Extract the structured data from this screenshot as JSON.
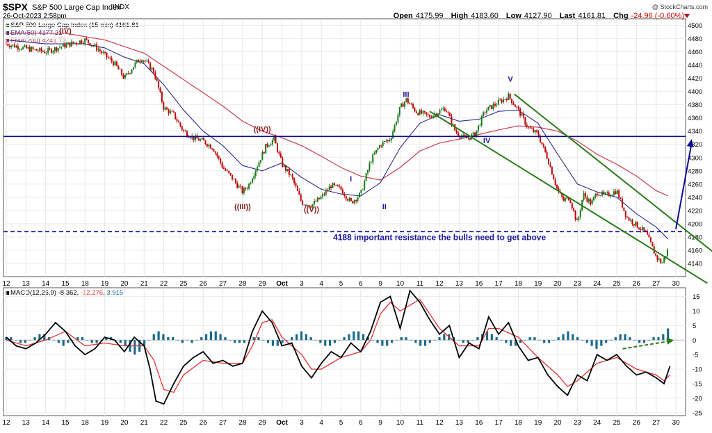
{
  "header": {
    "symbol": "$SPX",
    "name": "S&P 500 Large Cap Index",
    "exchange": "INDX",
    "date": "26-Oct-2023 2:58pm",
    "watermark": "@ StockCharts.com",
    "ohlc": {
      "open_label": "Open",
      "open": "4175.99",
      "high_label": "High",
      "high": "4183.60",
      "low_label": "Low",
      "low": "4127.90",
      "last_label": "Last",
      "last": "4161.81",
      "chg_label": "Chg",
      "chg": "-24.96 (-0.60%)"
    }
  },
  "legend": {
    "price": "S&P 500 Large Cap Index (15 min) 4161.81",
    "ema50": "EMA(50) 4177.21",
    "ema200": "EMA(200) 4241.73",
    "macd_label": "MACD(12,26,9)",
    "macd_value": "-8.362",
    "signal_value": "-12.276",
    "hist_value": "3.915"
  },
  "colors": {
    "up": "#1a7a1a",
    "down": "#c00000",
    "ema50": "#2a2a8a",
    "ema200": "#c83c50",
    "waves_blue": "#1a1aa0",
    "waves_brown": "#8a2020",
    "channel": "#2a7a1a",
    "resistance": "#0a0a9a",
    "macd": "#000000",
    "signal": "#e03030",
    "histogram": "#1a6a8a"
  },
  "chart_data": [
    {
      "type": "candlestick",
      "interval": "15 min",
      "ylim": [
        4120,
        4510
      ],
      "y_ticks": [
        4140,
        4160,
        4180,
        4200,
        4220,
        4240,
        4260,
        4280,
        4300,
        4320,
        4340,
        4360,
        4380,
        4400,
        4420,
        4440,
        4460,
        4480,
        4500
      ],
      "x_tick_labels": [
        "12",
        "13",
        "14",
        "15",
        "18",
        "19",
        "20",
        "21",
        "22",
        "25",
        "26",
        "27",
        "28",
        "29",
        "Oct",
        "3",
        "4",
        "5",
        "6",
        "9",
        "10",
        "11",
        "12",
        "13",
        "16",
        "17",
        "18",
        "19",
        "20",
        "23",
        "24",
        "25",
        "26",
        "27",
        "30"
      ],
      "close_path": [
        [
          0,
          4472
        ],
        [
          1,
          4465
        ],
        [
          2,
          4460
        ],
        [
          3,
          4470
        ],
        [
          4,
          4478
        ],
        [
          4.5,
          4468
        ],
        [
          5,
          4455
        ],
        [
          5.5,
          4442
        ],
        [
          6,
          4420
        ],
        [
          6.5,
          4440
        ],
        [
          6.8,
          4450
        ],
        [
          7,
          4448
        ],
        [
          7.5,
          4430
        ],
        [
          8,
          4375
        ],
        [
          8.5,
          4365
        ],
        [
          9,
          4340
        ],
        [
          9.5,
          4330
        ],
        [
          10,
          4325
        ],
        [
          10.5,
          4315
        ],
        [
          11,
          4285
        ],
        [
          11.5,
          4268
        ],
        [
          12,
          4248
        ],
        [
          12.3,
          4258
        ],
        [
          12.7,
          4285
        ],
        [
          13.2,
          4318
        ],
        [
          13.6,
          4328
        ],
        [
          14,
          4290
        ],
        [
          14.5,
          4270
        ],
        [
          15,
          4232
        ],
        [
          15.5,
          4228
        ],
        [
          16,
          4240
        ],
        [
          16.5,
          4258
        ],
        [
          17,
          4252
        ],
        [
          17.5,
          4232
        ],
        [
          18,
          4245
        ],
        [
          18.5,
          4295
        ],
        [
          19,
          4320
        ],
        [
          19.5,
          4328
        ],
        [
          20,
          4375
        ],
        [
          20.3,
          4388
        ],
        [
          20.8,
          4370
        ],
        [
          21.5,
          4362
        ],
        [
          22.3,
          4375
        ],
        [
          22.8,
          4340
        ],
        [
          23.3,
          4328
        ],
        [
          23.8,
          4335
        ],
        [
          24.3,
          4370
        ],
        [
          24.8,
          4380
        ],
        [
          25.5,
          4393
        ],
        [
          26,
          4372
        ],
        [
          26.5,
          4345
        ],
        [
          27,
          4335
        ],
        [
          27.5,
          4298
        ],
        [
          28,
          4250
        ],
        [
          28.3,
          4235
        ],
        [
          28.6,
          4240
        ],
        [
          29,
          4200
        ],
        [
          29.3,
          4245
        ],
        [
          29.7,
          4230
        ],
        [
          30,
          4248
        ],
        [
          30.4,
          4242
        ],
        [
          31,
          4250
        ],
        [
          31.5,
          4210
        ],
        [
          32,
          4198
        ],
        [
          32.5,
          4185
        ],
        [
          33,
          4150
        ],
        [
          33.3,
          4140
        ],
        [
          33.6,
          4161
        ]
      ],
      "ema50": [
        [
          0,
          4478
        ],
        [
          2,
          4472
        ],
        [
          4,
          4472
        ],
        [
          5,
          4466
        ],
        [
          6,
          4452
        ],
        [
          7,
          4442
        ],
        [
          8,
          4410
        ],
        [
          9,
          4372
        ],
        [
          10,
          4340
        ],
        [
          11,
          4318
        ],
        [
          12,
          4288
        ],
        [
          13,
          4280
        ],
        [
          14,
          4292
        ],
        [
          15,
          4270
        ],
        [
          16,
          4252
        ],
        [
          17,
          4245
        ],
        [
          18,
          4242
        ],
        [
          19,
          4262
        ],
        [
          20,
          4315
        ],
        [
          21,
          4352
        ],
        [
          22,
          4365
        ],
        [
          23,
          4355
        ],
        [
          24,
          4358
        ],
        [
          25,
          4370
        ],
        [
          26,
          4372
        ],
        [
          27,
          4352
        ],
        [
          28,
          4305
        ],
        [
          29,
          4260
        ],
        [
          30,
          4248
        ],
        [
          31,
          4240
        ],
        [
          32,
          4215
        ],
        [
          33,
          4195
        ],
        [
          33.6,
          4177
        ]
      ],
      "ema200": [
        [
          0,
          4488
        ],
        [
          3,
          4488
        ],
        [
          5,
          4478
        ],
        [
          7,
          4458
        ],
        [
          9,
          4418
        ],
        [
          11,
          4378
        ],
        [
          12,
          4355
        ],
        [
          13,
          4340
        ],
        [
          14,
          4330
        ],
        [
          15,
          4318
        ],
        [
          16,
          4302
        ],
        [
          17,
          4285
        ],
        [
          18,
          4272
        ],
        [
          19,
          4266
        ],
        [
          20,
          4285
        ],
        [
          21,
          4310
        ],
        [
          22,
          4322
        ],
        [
          23,
          4328
        ],
        [
          24,
          4335
        ],
        [
          25,
          4342
        ],
        [
          26,
          4348
        ],
        [
          27,
          4346
        ],
        [
          28,
          4340
        ],
        [
          29,
          4325
        ],
        [
          30,
          4305
        ],
        [
          31,
          4290
        ],
        [
          32,
          4272
        ],
        [
          33,
          4250
        ],
        [
          33.6,
          4242
        ]
      ],
      "horizontal_levels": [
        {
          "value": 4332,
          "style": "solid"
        },
        {
          "value": 4188,
          "style": "dashed"
        }
      ],
      "annotations": [
        {
          "text": "(IV)",
          "x": 3,
          "y": 4488,
          "color": "brown"
        },
        {
          "text": "((IV))",
          "x": 13,
          "y": 4339,
          "color": "brown"
        },
        {
          "text": "((III))",
          "x": 12,
          "y": 4222,
          "color": "brown"
        },
        {
          "text": "((V))",
          "x": 15.5,
          "y": 4218,
          "color": "brown"
        },
        {
          "text": "I",
          "x": 17.5,
          "y": 4264,
          "color": "blue"
        },
        {
          "text": "II",
          "x": 19.2,
          "y": 4222,
          "color": "blue"
        },
        {
          "text": "III",
          "x": 20.3,
          "y": 4392,
          "color": "blue"
        },
        {
          "text": "IV",
          "x": 24.4,
          "y": 4322,
          "color": "blue"
        },
        {
          "text": "V",
          "x": 25.6,
          "y": 4415,
          "color": "blue"
        },
        {
          "text": "4188 important resistance the bulls need to get above",
          "x": 22,
          "y": 4175,
          "color": "blue"
        }
      ],
      "channel_lines": [
        {
          "from": [
            21.5,
            4370
          ],
          "to": [
            35.6,
            4110
          ]
        },
        {
          "from": [
            25.8,
            4396
          ],
          "to": [
            36.2,
            4150
          ]
        }
      ],
      "arrow": {
        "from": [
          34,
          4192
        ],
        "to": [
          34.8,
          4328
        ]
      }
    },
    {
      "type": "line",
      "name": "MACD(12,26,9)",
      "ylim": [
        -26,
        18
      ],
      "y_ticks": [
        15,
        10,
        5,
        0,
        -5,
        -10,
        -15,
        -20,
        -25
      ],
      "macd_line": [
        [
          0,
          1
        ],
        [
          0.5,
          -2
        ],
        [
          1,
          -3
        ],
        [
          1.5,
          -1
        ],
        [
          2,
          2
        ],
        [
          2.5,
          6
        ],
        [
          3,
          3
        ],
        [
          3.5,
          -2
        ],
        [
          4,
          -5
        ],
        [
          4.5,
          -3
        ],
        [
          5,
          1
        ],
        [
          5.5,
          0
        ],
        [
          6,
          -4
        ],
        [
          6.5,
          1
        ],
        [
          7,
          -2
        ],
        [
          7.3,
          -10
        ],
        [
          7.6,
          -21
        ],
        [
          8,
          -22
        ],
        [
          8.5,
          -15
        ],
        [
          9,
          -9
        ],
        [
          9.5,
          -6
        ],
        [
          10,
          -4
        ],
        [
          10.5,
          -8
        ],
        [
          11,
          -7
        ],
        [
          11.5,
          -9
        ],
        [
          12,
          -8
        ],
        [
          12.5,
          3
        ],
        [
          13,
          10
        ],
        [
          13.5,
          6
        ],
        [
          14,
          -2
        ],
        [
          14.5,
          -1
        ],
        [
          15,
          -9
        ],
        [
          15.5,
          -13
        ],
        [
          16,
          -8
        ],
        [
          16.5,
          -4
        ],
        [
          17,
          -6
        ],
        [
          17.5,
          -1
        ],
        [
          18,
          -4
        ],
        [
          18.5,
          3
        ],
        [
          19,
          13
        ],
        [
          19.5,
          15
        ],
        [
          20,
          4
        ],
        [
          20.5,
          17
        ],
        [
          21,
          13
        ],
        [
          21.5,
          7
        ],
        [
          22,
          2
        ],
        [
          22.5,
          5
        ],
        [
          23,
          -6
        ],
        [
          23.5,
          -1
        ],
        [
          24,
          -3
        ],
        [
          24.5,
          8
        ],
        [
          25,
          2
        ],
        [
          25.5,
          6
        ],
        [
          26,
          -2
        ],
        [
          26.5,
          -7
        ],
        [
          27,
          -6
        ],
        [
          27.5,
          -12
        ],
        [
          28,
          -16
        ],
        [
          28.5,
          -19
        ],
        [
          29,
          -12
        ],
        [
          29.5,
          -14
        ],
        [
          30,
          -5
        ],
        [
          30.5,
          -7
        ],
        [
          31,
          -5
        ],
        [
          31.5,
          -9
        ],
        [
          32,
          -12
        ],
        [
          32.5,
          -11
        ],
        [
          33,
          -13
        ],
        [
          33.4,
          -15
        ],
        [
          33.7,
          -9
        ]
      ],
      "signal_line": [
        [
          0,
          0
        ],
        [
          1,
          -2
        ],
        [
          2,
          0
        ],
        [
          3,
          3
        ],
        [
          4,
          -2
        ],
        [
          5,
          -1
        ],
        [
          6,
          -2
        ],
        [
          7,
          -2
        ],
        [
          7.5,
          -7
        ],
        [
          8,
          -17
        ],
        [
          8.5,
          -18
        ],
        [
          9,
          -12
        ],
        [
          10,
          -7
        ],
        [
          11,
          -8
        ],
        [
          12,
          -8
        ],
        [
          12.5,
          -2
        ],
        [
          13,
          6
        ],
        [
          13.5,
          7
        ],
        [
          14,
          1
        ],
        [
          15,
          -5
        ],
        [
          15.5,
          -10
        ],
        [
          16,
          -10
        ],
        [
          17,
          -6
        ],
        [
          18,
          -4
        ],
        [
          18.5,
          0
        ],
        [
          19,
          9
        ],
        [
          19.5,
          13
        ],
        [
          20,
          10
        ],
        [
          20.5,
          12
        ],
        [
          21,
          14
        ],
        [
          22,
          4
        ],
        [
          23,
          -2
        ],
        [
          24,
          -2
        ],
        [
          24.5,
          4
        ],
        [
          25,
          4
        ],
        [
          26,
          1
        ],
        [
          27,
          -6
        ],
        [
          28,
          -12
        ],
        [
          28.5,
          -16
        ],
        [
          29,
          -14
        ],
        [
          30,
          -8
        ],
        [
          31,
          -6
        ],
        [
          32,
          -10
        ],
        [
          33,
          -12
        ],
        [
          33.4,
          -14
        ],
        [
          33.7,
          -12
        ]
      ],
      "histogram": [
        1,
        1,
        0,
        -1,
        -1,
        0,
        1,
        2,
        2,
        1,
        0,
        -1,
        -2,
        -1,
        0,
        1,
        1,
        0,
        -1,
        -1,
        0,
        1,
        1,
        0,
        -1,
        -2,
        -4,
        -5,
        -4,
        -2,
        0,
        2,
        3,
        2,
        1,
        1,
        0,
        -1,
        0,
        -1,
        0,
        1,
        2,
        3,
        3,
        2,
        1,
        0,
        -1,
        -1,
        -1,
        0,
        1,
        1,
        0,
        -1,
        -2,
        -2,
        -1,
        0,
        1,
        2,
        3,
        2,
        1,
        0,
        -1,
        -2,
        -2,
        -1,
        0,
        1,
        2,
        3,
        3,
        2,
        1,
        0,
        -1,
        -2,
        -2,
        -1,
        0,
        1,
        1,
        0,
        -1,
        -2,
        -2,
        -1,
        0,
        1,
        2,
        2,
        1,
        0,
        -1,
        -1,
        0,
        1,
        2,
        3,
        2,
        1,
        0,
        -1,
        -2,
        -2,
        -1,
        0,
        1,
        1,
        0,
        -1,
        -1,
        0,
        1,
        2,
        3,
        2,
        1,
        0,
        -1,
        -2,
        -3,
        -2,
        -1,
        0,
        1,
        2,
        2,
        1,
        0,
        -1,
        -1,
        0,
        1,
        1,
        2,
        4
      ],
      "arrow": {
        "from": [
          31.3,
          -3
        ],
        "to": [
          33.9,
          0
        ]
      }
    }
  ]
}
